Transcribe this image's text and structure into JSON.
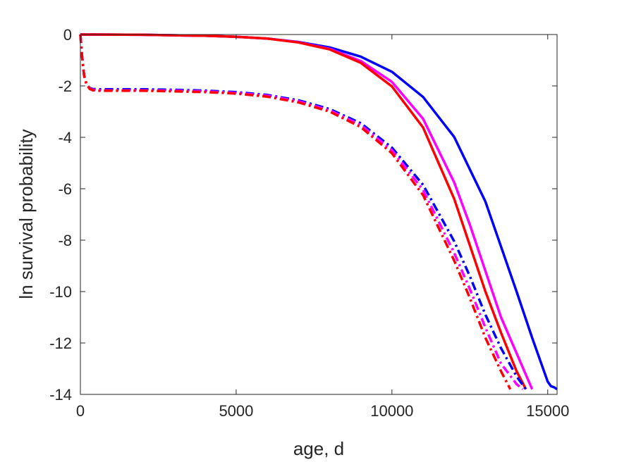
{
  "chart_data": {
    "type": "line",
    "title": "",
    "xlabel": "age, d",
    "ylabel": "ln survival probability",
    "xlim": [
      0,
      15300
    ],
    "ylim": [
      -14,
      0
    ],
    "xticks": [
      0,
      5000,
      10000,
      15000
    ],
    "yticks": [
      0,
      -2,
      -4,
      -6,
      -8,
      -10,
      -12,
      -14
    ],
    "xtick_labels": [
      "0",
      "5000",
      "10000",
      "15000"
    ],
    "ytick_labels": [
      "0",
      "-2",
      "-4",
      "-6",
      "-8",
      "-10",
      "-12",
      "-14"
    ],
    "grid": false,
    "series": [
      {
        "color": "#0000FF",
        "style": "solid",
        "x": [
          0,
          2000,
          4000,
          5000,
          6000,
          7000,
          8000,
          9000,
          10000,
          11000,
          12000,
          13000,
          13500,
          14000,
          14500,
          15000,
          15100,
          15200,
          15300
        ],
        "y": [
          0,
          -0.01,
          -0.05,
          -0.09,
          -0.16,
          -0.29,
          -0.5,
          -0.86,
          -1.45,
          -2.43,
          -3.99,
          -6.5,
          -8.25,
          -10.0,
          -11.8,
          -13.5,
          -13.68,
          -13.72,
          -13.8
        ]
      },
      {
        "color": "#FF00FF",
        "style": "solid",
        "x": [
          0,
          2000,
          4000,
          5000,
          6000,
          7000,
          8000,
          9000,
          10000,
          11000,
          12000,
          12500,
          13000,
          13500,
          14000,
          14500
        ],
        "y": [
          0,
          -0.01,
          -0.05,
          -0.09,
          -0.16,
          -0.3,
          -0.56,
          -1.03,
          -1.84,
          -3.28,
          -5.76,
          -7.4,
          -9.2,
          -11.0,
          -12.4,
          -13.8
        ]
      },
      {
        "color": "#FF0000",
        "style": "solid",
        "x": [
          0,
          2000,
          4000,
          5000,
          6000,
          7000,
          8000,
          9000,
          10000,
          11000,
          12000,
          12500,
          13000,
          13500,
          14000,
          14300
        ],
        "y": [
          0,
          -0.01,
          -0.05,
          -0.09,
          -0.16,
          -0.31,
          -0.58,
          -1.1,
          -2.02,
          -3.62,
          -6.4,
          -8.2,
          -10.0,
          -11.6,
          -13.1,
          -13.8
        ]
      },
      {
        "color": "#0000FF",
        "style": "dashdot",
        "x": [
          0,
          50,
          120,
          200,
          300,
          400,
          600,
          1000,
          2000,
          3000,
          4000,
          5000,
          6000,
          7000,
          8000,
          9000,
          10000,
          11000,
          12000,
          12500,
          13000,
          13500,
          14000,
          14300
        ],
        "y": [
          0,
          -0.8,
          -1.6,
          -1.95,
          -2.08,
          -2.12,
          -2.13,
          -2.13,
          -2.13,
          -2.15,
          -2.18,
          -2.24,
          -2.35,
          -2.56,
          -2.9,
          -3.45,
          -4.4,
          -5.85,
          -8.05,
          -9.4,
          -10.9,
          -12.2,
          -13.3,
          -13.8
        ]
      },
      {
        "color": "#FF00FF",
        "style": "dashdot",
        "x": [
          0,
          50,
          120,
          200,
          300,
          400,
          600,
          1000,
          2000,
          3000,
          4000,
          5000,
          6000,
          7000,
          8000,
          9000,
          10000,
          11000,
          12000,
          12500,
          13000,
          13500,
          14000,
          14200
        ],
        "y": [
          0,
          -0.8,
          -1.6,
          -1.95,
          -2.1,
          -2.15,
          -2.17,
          -2.17,
          -2.17,
          -2.18,
          -2.21,
          -2.27,
          -2.38,
          -2.6,
          -2.95,
          -3.52,
          -4.5,
          -6.05,
          -8.5,
          -9.9,
          -11.4,
          -12.8,
          -13.6,
          -13.8
        ]
      },
      {
        "color": "#FF0000",
        "style": "dashdot",
        "x": [
          0,
          50,
          120,
          200,
          300,
          400,
          600,
          1000,
          2000,
          3000,
          4000,
          5000,
          6000,
          7000,
          8000,
          9000,
          10000,
          11000,
          12000,
          12500,
          13000,
          13500,
          13800
        ],
        "y": [
          0,
          -0.8,
          -1.6,
          -1.95,
          -2.12,
          -2.17,
          -2.19,
          -2.19,
          -2.19,
          -2.21,
          -2.24,
          -2.3,
          -2.42,
          -2.64,
          -3.0,
          -3.6,
          -4.62,
          -6.25,
          -8.8,
          -10.25,
          -11.8,
          -13.1,
          -13.8
        ]
      }
    ]
  }
}
